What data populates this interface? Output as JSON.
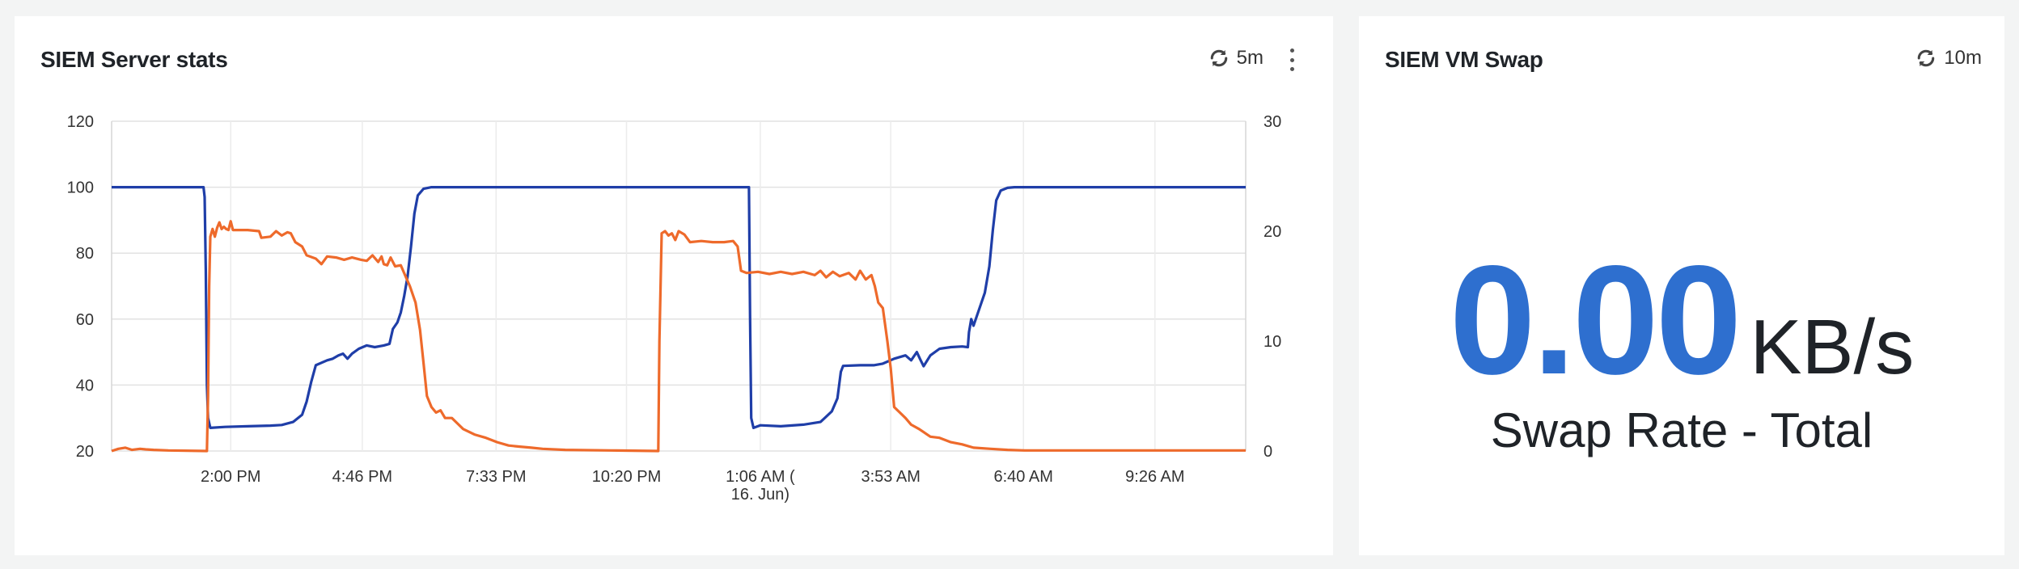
{
  "left_panel": {
    "title": "SIEM Server stats",
    "refresh_interval": "5m",
    "refresh_icon": "refresh-icon",
    "menu_icon": "kebab-menu-icon"
  },
  "right_panel": {
    "title": "SIEM VM Swap",
    "refresh_interval": "10m",
    "refresh_icon": "refresh-icon",
    "value": "0.00",
    "unit": "KB/s",
    "label": "Swap Rate - Total",
    "value_color": "#2e6fcf"
  },
  "chart_data": {
    "type": "line",
    "title": "",
    "x_tick_labels": [
      "2:00 PM",
      "4:46 PM",
      "7:33 PM",
      "10:20 PM",
      "1:06 AM (16. Jun)",
      "3:53 AM",
      "6:40 AM",
      "9:26 AM"
    ],
    "x_domain": [
      0,
      1000
    ],
    "x_ticks": [
      105,
      221,
      339,
      454,
      572,
      687,
      804,
      920
    ],
    "y_left": {
      "ylim": [
        20,
        120
      ],
      "ticks": [
        20,
        40,
        60,
        80,
        100,
        120
      ]
    },
    "y_right": {
      "ylim": [
        0,
        30
      ],
      "ticks": [
        0,
        10,
        20,
        30
      ]
    },
    "grid": true,
    "series": [
      {
        "color": "#1f3ea8",
        "axis": "left",
        "points": [
          [
            0,
            100
          ],
          [
            81,
            100
          ],
          [
            82,
            97
          ],
          [
            83,
            75
          ],
          [
            84,
            40
          ],
          [
            85,
            30
          ],
          [
            87,
            27
          ],
          [
            100,
            27.3
          ],
          [
            120,
            27.5
          ],
          [
            140,
            27.7
          ],
          [
            150,
            27.9
          ],
          [
            160,
            28.8
          ],
          [
            168,
            31
          ],
          [
            172,
            35
          ],
          [
            176,
            41
          ],
          [
            180,
            46
          ],
          [
            190,
            47.5
          ],
          [
            195,
            48
          ],
          [
            200,
            49
          ],
          [
            204,
            49.5
          ],
          [
            208,
            48
          ],
          [
            212,
            49.5
          ],
          [
            218,
            51
          ],
          [
            225,
            52
          ],
          [
            232,
            51.5
          ],
          [
            240,
            52
          ],
          [
            245,
            52.5
          ],
          [
            248,
            57
          ],
          [
            252,
            59
          ],
          [
            255,
            62
          ],
          [
            258,
            67
          ],
          [
            261,
            73
          ],
          [
            264,
            82
          ],
          [
            267,
            92
          ],
          [
            270,
            97.5
          ],
          [
            275,
            99.5
          ],
          [
            282,
            100
          ],
          [
            562,
            100
          ],
          [
            563,
            60
          ],
          [
            564,
            30
          ],
          [
            566,
            27
          ],
          [
            572,
            27.8
          ],
          [
            590,
            27.5
          ],
          [
            610,
            28
          ],
          [
            625,
            28.8
          ],
          [
            635,
            32
          ],
          [
            640,
            36
          ],
          [
            643,
            44
          ],
          [
            645,
            45.8
          ],
          [
            660,
            46
          ],
          [
            672,
            46
          ],
          [
            680,
            46.5
          ],
          [
            690,
            48
          ],
          [
            700,
            49
          ],
          [
            705,
            47.5
          ],
          [
            710,
            50
          ],
          [
            713,
            47.8
          ],
          [
            716,
            45.7
          ],
          [
            722,
            49
          ],
          [
            730,
            51
          ],
          [
            740,
            51.5
          ],
          [
            750,
            51.7
          ],
          [
            755,
            51.5
          ],
          [
            756,
            56
          ],
          [
            758,
            60
          ],
          [
            760,
            58
          ],
          [
            766,
            64
          ],
          [
            770,
            68
          ],
          [
            774,
            76
          ],
          [
            777,
            87
          ],
          [
            780,
            96
          ],
          [
            784,
            99
          ],
          [
            790,
            99.8
          ],
          [
            796,
            100
          ],
          [
            1000,
            100
          ]
        ]
      },
      {
        "color": "#ee6a2b",
        "axis": "right",
        "points": [
          [
            0,
            0
          ],
          [
            6,
            0.2
          ],
          [
            12,
            0.3
          ],
          [
            18,
            0.1
          ],
          [
            25,
            0.2
          ],
          [
            30,
            0.15
          ],
          [
            37,
            0.1
          ],
          [
            50,
            0.05
          ],
          [
            84,
            0
          ],
          [
            85,
            5
          ],
          [
            86,
            15
          ],
          [
            87,
            19.5
          ],
          [
            89,
            20.2
          ],
          [
            91,
            19.5
          ],
          [
            93,
            20.3
          ],
          [
            95,
            20.8
          ],
          [
            97,
            20.2
          ],
          [
            99,
            20.4
          ],
          [
            101,
            20.2
          ],
          [
            103,
            20.1
          ],
          [
            105,
            20.9
          ],
          [
            107,
            20.1
          ],
          [
            112,
            20.1
          ],
          [
            120,
            20.1
          ],
          [
            130,
            20.0
          ],
          [
            132,
            19.4
          ],
          [
            140,
            19.5
          ],
          [
            145,
            20
          ],
          [
            150,
            19.6
          ],
          [
            155,
            19.9
          ],
          [
            158,
            19.8
          ],
          [
            162,
            19.0
          ],
          [
            168,
            18.6
          ],
          [
            172,
            17.8
          ],
          [
            180,
            17.5
          ],
          [
            185,
            17.0
          ],
          [
            190,
            17.7
          ],
          [
            198,
            17.6
          ],
          [
            205,
            17.4
          ],
          [
            212,
            17.6
          ],
          [
            220,
            17.4
          ],
          [
            225,
            17.3
          ],
          [
            230,
            17.8
          ],
          [
            235,
            17.2
          ],
          [
            238,
            17.7
          ],
          [
            240,
            17.0
          ],
          [
            243,
            16.9
          ],
          [
            246,
            17.6
          ],
          [
            250,
            16.8
          ],
          [
            255,
            16.9
          ],
          [
            260,
            15.7
          ],
          [
            263,
            15.0
          ],
          [
            268,
            13.5
          ],
          [
            272,
            11.0
          ],
          [
            275,
            8.0
          ],
          [
            278,
            5.0
          ],
          [
            282,
            4.0
          ],
          [
            286,
            3.5
          ],
          [
            290,
            3.7
          ],
          [
            294,
            3.0
          ],
          [
            300,
            3.0
          ],
          [
            305,
            2.5
          ],
          [
            310,
            2.0
          ],
          [
            320,
            1.5
          ],
          [
            330,
            1.2
          ],
          [
            340,
            0.8
          ],
          [
            350,
            0.5
          ],
          [
            360,
            0.4
          ],
          [
            370,
            0.3
          ],
          [
            380,
            0.2
          ],
          [
            400,
            0.1
          ],
          [
            440,
            0.05
          ],
          [
            482,
            0.0
          ],
          [
            483,
            10
          ],
          [
            485,
            19.8
          ],
          [
            488,
            20.0
          ],
          [
            491,
            19.6
          ],
          [
            494,
            19.8
          ],
          [
            497,
            19.2
          ],
          [
            500,
            20.0
          ],
          [
            505,
            19.7
          ],
          [
            510,
            19.0
          ],
          [
            520,
            19.1
          ],
          [
            530,
            19.0
          ],
          [
            540,
            19.0
          ],
          [
            548,
            19.1
          ],
          [
            552,
            18.6
          ],
          [
            555,
            16.4
          ],
          [
            560,
            16.2
          ],
          [
            570,
            16.3
          ],
          [
            580,
            16.1
          ],
          [
            590,
            16.3
          ],
          [
            600,
            16.1
          ],
          [
            610,
            16.3
          ],
          [
            620,
            16.0
          ],
          [
            625,
            16.4
          ],
          [
            630,
            15.8
          ],
          [
            636,
            16.3
          ],
          [
            642,
            15.9
          ],
          [
            650,
            16.2
          ],
          [
            656,
            15.6
          ],
          [
            660,
            16.4
          ],
          [
            665,
            15.6
          ],
          [
            670,
            16.0
          ],
          [
            673,
            15.0
          ],
          [
            676,
            13.5
          ],
          [
            680,
            13.0
          ],
          [
            684,
            10.0
          ],
          [
            687,
            7.5
          ],
          [
            690,
            4.0
          ],
          [
            695,
            3.5
          ],
          [
            700,
            3.0
          ],
          [
            705,
            2.4
          ],
          [
            712,
            2.0
          ],
          [
            722,
            1.3
          ],
          [
            730,
            1.2
          ],
          [
            740,
            0.8
          ],
          [
            750,
            0.6
          ],
          [
            760,
            0.3
          ],
          [
            775,
            0.2
          ],
          [
            790,
            0.1
          ],
          [
            805,
            0.05
          ],
          [
            1000,
            0.05
          ]
        ]
      }
    ]
  }
}
